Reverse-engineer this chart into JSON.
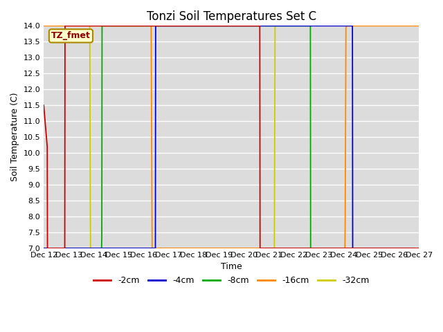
{
  "title": "Tonzi Soil Temperatures Set C",
  "xlabel": "Time",
  "ylabel": "Soil Temperature (C)",
  "ylim": [
    7.0,
    14.0
  ],
  "yticks": [
    7.0,
    7.5,
    8.0,
    8.5,
    9.0,
    9.5,
    10.0,
    10.5,
    11.0,
    11.5,
    12.0,
    12.5,
    13.0,
    13.5,
    14.0
  ],
  "xtick_labels": [
    "Dec 12",
    "Dec 13",
    "Dec 14",
    "Dec 15",
    "Dec 16",
    "Dec 17",
    "Dec 18",
    "Dec 19",
    "Dec 20",
    "Dec 21",
    "Dec 22",
    "Dec 23",
    "Dec 24",
    "Dec 25",
    "Dec 26",
    "Dec 27"
  ],
  "legend_label": "TZ_fmet",
  "series_labels": [
    "-2cm",
    "-4cm",
    "-8cm",
    "-16cm",
    "-32cm"
  ],
  "series_colors": [
    "#cc0000",
    "#0000cc",
    "#00aa00",
    "#ff8800",
    "#cccc00"
  ],
  "fig_bg": "#ffffff",
  "plot_bg": "#dcdcdc",
  "grid_color": "#ffffff",
  "title_fontsize": 12,
  "axis_fontsize": 9,
  "tick_fontsize": 8,
  "legend_fontsize": 9
}
